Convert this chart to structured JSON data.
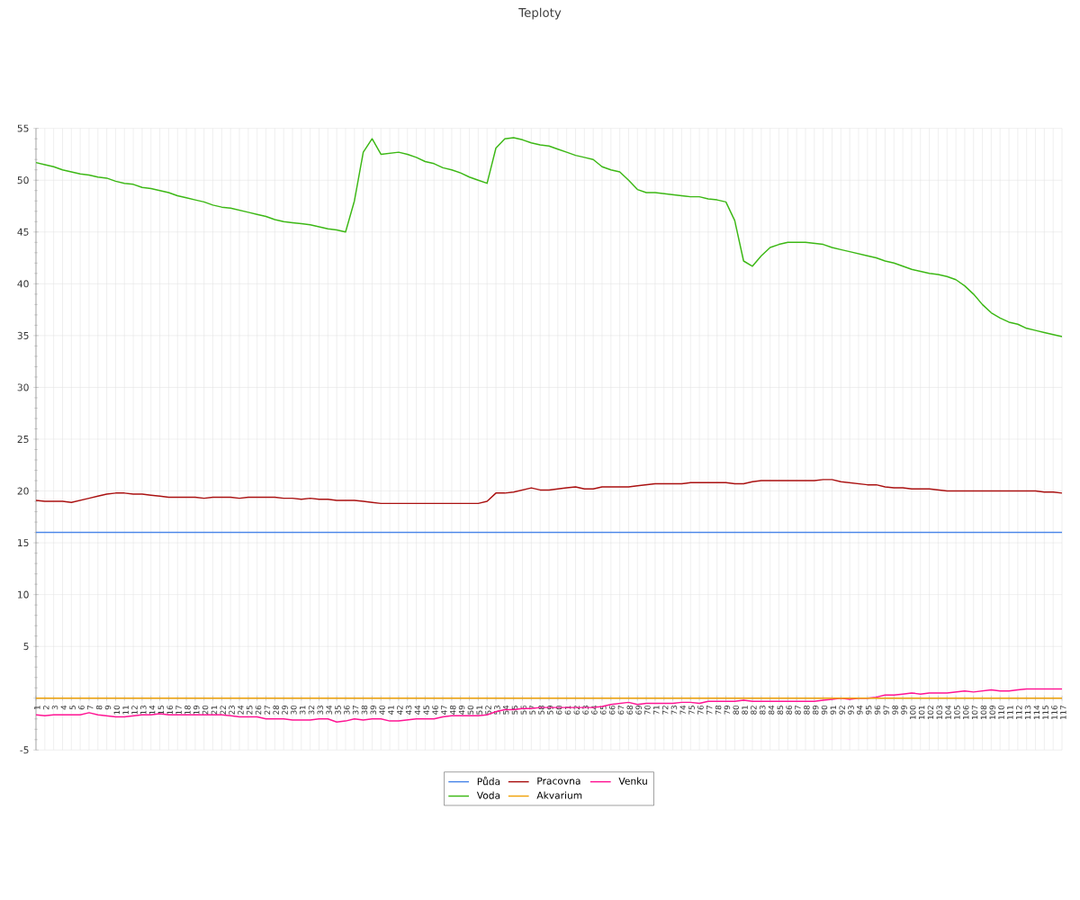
{
  "chart_data": {
    "type": "line",
    "title": "Teploty",
    "categories": [
      "1",
      "2",
      "3",
      "4",
      "5",
      "6",
      "7",
      "8",
      "9",
      "10",
      "11",
      "12",
      "13",
      "14",
      "15",
      "16",
      "17",
      "18",
      "19",
      "20",
      "21",
      "22",
      "23",
      "24",
      "25",
      "26",
      "27",
      "28",
      "29",
      "30",
      "31",
      "32",
      "33",
      "34",
      "35",
      "36",
      "37",
      "38",
      "39",
      "40",
      "41",
      "42",
      "43",
      "44",
      "45",
      "46",
      "47",
      "48",
      "49",
      "50",
      "51",
      "52",
      "53",
      "54",
      "55",
      "56",
      "57",
      "58",
      "59",
      "60",
      "61",
      "62",
      "63",
      "64",
      "65",
      "66",
      "67",
      "68",
      "69",
      "70",
      "71",
      "72",
      "73",
      "74",
      "75",
      "76",
      "77",
      "78",
      "79",
      "80",
      "81",
      "82",
      "83",
      "84",
      "85",
      "86",
      "87",
      "88",
      "89",
      "90",
      "91",
      "92",
      "93",
      "94",
      "95",
      "96",
      "97",
      "98",
      "99",
      "100",
      "101",
      "102",
      "103",
      "104",
      "105",
      "106",
      "107",
      "108",
      "109",
      "110",
      "111",
      "112",
      "113",
      "114",
      "115",
      "116",
      "117"
    ],
    "series": [
      {
        "name": "Půda",
        "color": "#4a86e8",
        "values": [
          16,
          16,
          16,
          16,
          16,
          16,
          16,
          16,
          16,
          16,
          16,
          16,
          16,
          16,
          16,
          16,
          16,
          16,
          16,
          16,
          16,
          16,
          16,
          16,
          16,
          16,
          16,
          16,
          16,
          16,
          16,
          16,
          16,
          16,
          16,
          16,
          16,
          16,
          16,
          16,
          16,
          16,
          16,
          16,
          16,
          16,
          16,
          16,
          16,
          16,
          16,
          16,
          16,
          16,
          16,
          16,
          16,
          16,
          16,
          16,
          16,
          16,
          16,
          16,
          16,
          16,
          16,
          16,
          16,
          16,
          16,
          16,
          16,
          16,
          16,
          16,
          16,
          16,
          16,
          16,
          16,
          16,
          16,
          16,
          16,
          16,
          16,
          16,
          16,
          16,
          16,
          16,
          16,
          16,
          16,
          16,
          16,
          16,
          16,
          16,
          16,
          16,
          16,
          16,
          16,
          16,
          16,
          16,
          16,
          16,
          16,
          16,
          16,
          16,
          16,
          16,
          16
        ]
      },
      {
        "name": "Pracovna",
        "color": "#aa1111",
        "values": [
          19.1,
          19.0,
          19.0,
          19.0,
          18.9,
          19.1,
          19.3,
          19.5,
          19.7,
          19.8,
          19.8,
          19.7,
          19.7,
          19.6,
          19.5,
          19.4,
          19.4,
          19.4,
          19.4,
          19.3,
          19.4,
          19.4,
          19.4,
          19.3,
          19.4,
          19.4,
          19.4,
          19.4,
          19.3,
          19.3,
          19.2,
          19.3,
          19.2,
          19.2,
          19.1,
          19.1,
          19.1,
          19.0,
          18.9,
          18.8,
          18.8,
          18.8,
          18.8,
          18.8,
          18.8,
          18.8,
          18.8,
          18.8,
          18.8,
          18.8,
          18.8,
          19.0,
          19.8,
          19.8,
          19.9,
          20.1,
          20.3,
          20.1,
          20.1,
          20.2,
          20.3,
          20.4,
          20.2,
          20.2,
          20.4,
          20.4,
          20.4,
          20.4,
          20.5,
          20.6,
          20.7,
          20.7,
          20.7,
          20.7,
          20.8,
          20.8,
          20.8,
          20.8,
          20.8,
          20.7,
          20.7,
          20.9,
          21.0,
          21.0,
          21.0,
          21.0,
          21.0,
          21.0,
          21.0,
          21.1,
          21.1,
          20.9,
          20.8,
          20.7,
          20.6,
          20.6,
          20.4,
          20.3,
          20.3,
          20.2,
          20.2,
          20.2,
          20.1,
          20.0,
          20.0,
          20.0,
          20.0,
          20.0,
          20.0,
          20.0,
          20.0,
          20.0,
          20.0,
          20.0,
          19.9,
          19.9,
          19.8
        ]
      },
      {
        "name": "Venku",
        "color": "#ff1493",
        "values": [
          -1.6,
          -1.7,
          -1.6,
          -1.6,
          -1.6,
          -1.6,
          -1.4,
          -1.6,
          -1.7,
          -1.8,
          -1.8,
          -1.7,
          -1.6,
          -1.6,
          -1.5,
          -1.6,
          -1.6,
          -1.6,
          -1.6,
          -1.6,
          -1.6,
          -1.6,
          -1.7,
          -1.8,
          -1.8,
          -1.8,
          -2.0,
          -2.0,
          -2.0,
          -2.1,
          -2.1,
          -2.1,
          -2.0,
          -2.0,
          -2.3,
          -2.2,
          -2.0,
          -2.1,
          -2.0,
          -2.0,
          -2.2,
          -2.2,
          -2.1,
          -2.0,
          -2.0,
          -2.0,
          -1.8,
          -1.7,
          -1.7,
          -1.7,
          -1.7,
          -1.6,
          -1.3,
          -1.1,
          -1.1,
          -1.0,
          -1.0,
          -0.9,
          -0.9,
          -0.9,
          -0.9,
          -0.9,
          -0.9,
          -0.9,
          -0.8,
          -0.6,
          -0.5,
          -0.4,
          -0.6,
          -0.5,
          -0.5,
          -0.5,
          -0.5,
          -0.4,
          -0.4,
          -0.5,
          -0.3,
          -0.3,
          -0.3,
          -0.3,
          -0.2,
          -0.3,
          -0.3,
          -0.3,
          -0.3,
          -0.3,
          -0.3,
          -0.3,
          -0.3,
          -0.2,
          -0.1,
          0.0,
          -0.1,
          0.0,
          0.0,
          0.1,
          0.3,
          0.3,
          0.4,
          0.5,
          0.4,
          0.5,
          0.5,
          0.5,
          0.6,
          0.7,
          0.6,
          0.7,
          0.8,
          0.7,
          0.7,
          0.8,
          0.9,
          0.9,
          0.9,
          0.9,
          0.9
        ]
      },
      {
        "name": "Voda",
        "color": "#3cb815",
        "values": [
          51.7,
          51.5,
          51.3,
          51.0,
          50.8,
          50.6,
          50.5,
          50.3,
          50.2,
          49.9,
          49.7,
          49.6,
          49.3,
          49.2,
          49.0,
          48.8,
          48.5,
          48.3,
          48.1,
          47.9,
          47.6,
          47.4,
          47.3,
          47.1,
          46.9,
          46.7,
          46.5,
          46.2,
          46.0,
          45.9,
          45.8,
          45.7,
          45.5,
          45.3,
          45.2,
          45.0,
          48.0,
          52.7,
          54.0,
          52.5,
          52.6,
          52.7,
          52.5,
          52.2,
          51.8,
          51.6,
          51.2,
          51.0,
          50.7,
          50.3,
          50.0,
          49.7,
          53.1,
          54.0,
          54.1,
          53.9,
          53.6,
          53.4,
          53.3,
          53.0,
          52.7,
          52.4,
          52.2,
          52.0,
          51.3,
          51.0,
          50.8,
          50.0,
          49.1,
          48.8,
          48.8,
          48.7,
          48.6,
          48.5,
          48.4,
          48.4,
          48.2,
          48.1,
          47.9,
          46.1,
          42.2,
          41.7,
          42.7,
          43.5,
          43.8,
          44.0,
          44.0,
          44.0,
          43.9,
          43.8,
          43.5,
          43.3,
          43.1,
          42.9,
          42.7,
          42.5,
          42.2,
          42.0,
          41.7,
          41.4,
          41.2,
          41.0,
          40.9,
          40.7,
          40.4,
          39.8,
          39.0,
          38.0,
          37.2,
          36.7,
          36.3,
          36.1,
          35.7,
          35.5,
          35.3,
          35.1,
          34.9
        ]
      },
      {
        "name": "Akvarium",
        "color": "#f0a30a",
        "values": [
          0,
          0,
          0,
          0,
          0,
          0,
          0,
          0,
          0,
          0,
          0,
          0,
          0,
          0,
          0,
          0,
          0,
          0,
          0,
          0,
          0,
          0,
          0,
          0,
          0,
          0,
          0,
          0,
          0,
          0,
          0,
          0,
          0,
          0,
          0,
          0,
          0,
          0,
          0,
          0,
          0,
          0,
          0,
          0,
          0,
          0,
          0,
          0,
          0,
          0,
          0,
          0,
          0,
          0,
          0,
          0,
          0,
          0,
          0,
          0,
          0,
          0,
          0,
          0,
          0,
          0,
          0,
          0,
          0,
          0,
          0,
          0,
          0,
          0,
          0,
          0,
          0,
          0,
          0,
          0,
          0,
          0,
          0,
          0,
          0,
          0,
          0,
          0,
          0,
          0,
          0,
          0,
          0,
          0,
          0,
          0,
          0,
          0,
          0,
          0,
          0,
          0,
          0,
          0,
          0,
          0,
          0,
          0,
          0,
          0,
          0,
          0,
          0,
          0,
          0,
          0,
          0
        ]
      }
    ],
    "ylim": [
      -5,
      55
    ],
    "yticks": [
      -5,
      {
        "value": 0,
        "label": null
      },
      5,
      10,
      15,
      20,
      25,
      30,
      35,
      40,
      45,
      50,
      55
    ],
    "grid": true,
    "legend": "bottom",
    "marker": "none",
    "line_style": "solid"
  }
}
